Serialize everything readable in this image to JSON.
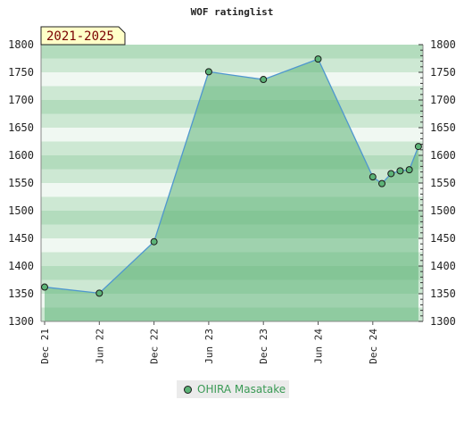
{
  "chart_data": {
    "type": "area",
    "title": "WOF ratinglist",
    "period_label": "2021-2025",
    "ylim": [
      1300,
      1800
    ],
    "y_ticks": [
      1300,
      1350,
      1400,
      1450,
      1500,
      1550,
      1600,
      1650,
      1700,
      1750,
      1800
    ],
    "x_ticks": [
      "Dec 21",
      "Jun 22",
      "Dec 22",
      "Jun 23",
      "Dec 23",
      "Jun 24",
      "Dec 24"
    ],
    "series": [
      {
        "name": "OHIRA Masatake",
        "color": "#5cb377",
        "points": [
          {
            "x": "2021-12",
            "y": 1362
          },
          {
            "x": "2022-06",
            "y": 1351
          },
          {
            "x": "2022-12",
            "y": 1444
          },
          {
            "x": "2023-06",
            "y": 1751
          },
          {
            "x": "2023-12",
            "y": 1737
          },
          {
            "x": "2024-06",
            "y": 1774
          },
          {
            "x": "2024-12",
            "y": 1561
          },
          {
            "x": "2025-01",
            "y": 1549
          },
          {
            "x": "2025-02",
            "y": 1567
          },
          {
            "x": "2025-03",
            "y": 1572
          },
          {
            "x": "2025-04",
            "y": 1574
          },
          {
            "x": "2025-05",
            "y": 1616
          }
        ]
      }
    ],
    "legend_position": "bottom"
  },
  "colors": {
    "band_dark": "#b3dcbd",
    "band_mid": "#cde8d3",
    "band_light": "#f0f8f2",
    "area_fill": "#5cb377",
    "line": "#4f97cf",
    "marker": "#5cb377"
  }
}
